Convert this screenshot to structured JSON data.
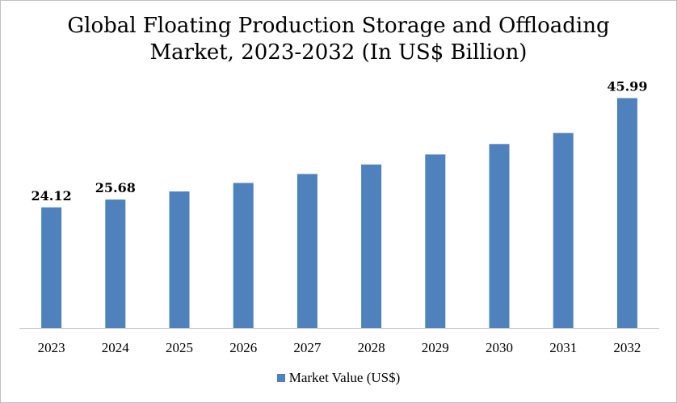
{
  "chart_data": {
    "type": "bar",
    "title_lines": [
      "Global Floating Production Storage and Offloading",
      "Market, 2023-2032 (In US$ Billion)"
    ],
    "categories": [
      "2023",
      "2024",
      "2025",
      "2026",
      "2027",
      "2028",
      "2029",
      "2030",
      "2031",
      "2032"
    ],
    "series": [
      {
        "name": "Market Value (US$)",
        "values": [
          24.12,
          25.68,
          27.3,
          29.0,
          30.8,
          32.7,
          34.7,
          36.8,
          39.0,
          45.99
        ],
        "color": "#4f81bd"
      }
    ],
    "data_labels": [
      {
        "index": 0,
        "text": "24.12"
      },
      {
        "index": 1,
        "text": "25.68"
      },
      {
        "index": 9,
        "text": "45.99"
      }
    ],
    "ylim": [
      0,
      48
    ],
    "grid": false,
    "legend": "bottom"
  }
}
